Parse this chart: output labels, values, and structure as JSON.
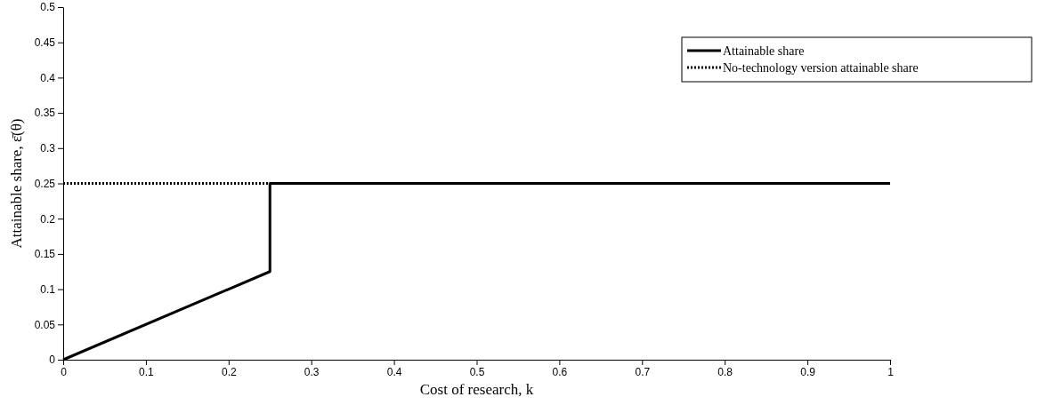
{
  "chart_data": {
    "type": "line",
    "xlabel": "Cost of research, k",
    "ylabel": "Attainable share, ε̄(θ)",
    "xlim": [
      0,
      1
    ],
    "xticks": [
      0,
      0.1,
      0.2,
      0.3,
      0.4,
      0.5,
      0.6,
      0.7,
      0.8,
      0.9,
      1
    ],
    "ylim": [
      0,
      0.5
    ],
    "yticks": [
      0,
      0.05,
      0.1,
      0.15,
      0.2,
      0.25,
      0.3,
      0.35,
      0.4,
      0.45,
      0.5
    ],
    "grid": false,
    "legend": "top right",
    "marker": "none",
    "series": [
      {
        "name": "Attainable share",
        "color": "#000000",
        "line_style": "solid",
        "x": [
          0,
          0.25,
          0.25,
          1
        ],
        "values": [
          0,
          0.125,
          0.25,
          0.25
        ]
      },
      {
        "name": "No-technology version attainable share",
        "color": "#000000",
        "line_style": "dotted",
        "x": [
          0,
          0.25
        ],
        "values": [
          0.25,
          0.25
        ]
      }
    ]
  }
}
